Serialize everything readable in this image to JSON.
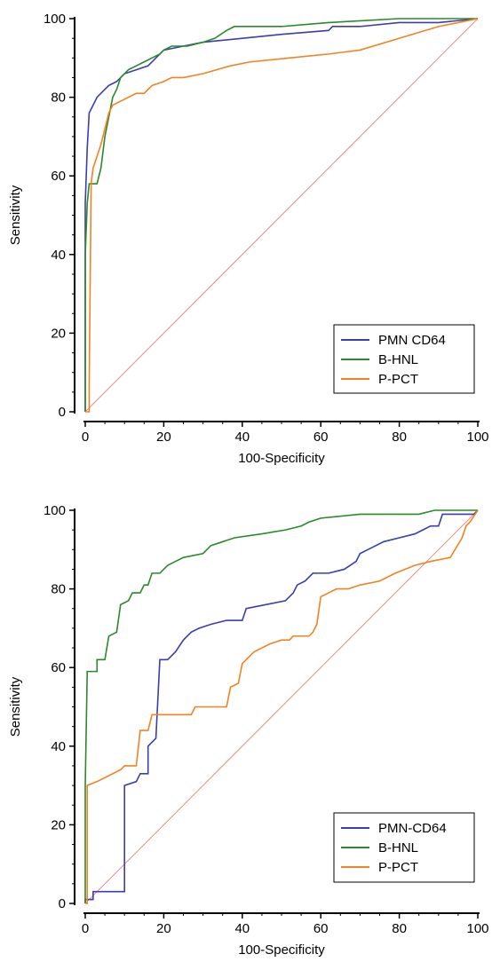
{
  "colors": {
    "pmn": "#3b3db0",
    "hnl": "#2a8a2a",
    "pct": "#f58220",
    "diagonal": "#e88a8a",
    "axis": "#000000"
  },
  "chart_data": [
    {
      "type": "line",
      "xlabel": "100-Specificity",
      "ylabel": "Sensitivity",
      "xlim": [
        0,
        100
      ],
      "ylim": [
        0,
        100
      ],
      "xticks": [
        "0",
        "20",
        "40",
        "60",
        "80",
        "100"
      ],
      "yticks": [
        "0",
        "20",
        "40",
        "60",
        "80",
        "100"
      ],
      "legend": "bottom-right",
      "reference_line": [
        [
          0,
          0
        ],
        [
          100,
          100
        ]
      ],
      "series": [
        {
          "name": "PMN CD64",
          "color": "pmn",
          "points": [
            [
              0,
              0
            ],
            [
              0,
              53
            ],
            [
              0.5,
              67
            ],
            [
              1,
              76
            ],
            [
              2,
              78
            ],
            [
              3,
              80
            ],
            [
              5,
              82
            ],
            [
              6,
              83
            ],
            [
              8,
              84
            ],
            [
              10,
              86
            ],
            [
              13,
              87
            ],
            [
              16,
              88
            ],
            [
              18,
              90
            ],
            [
              20,
              92
            ],
            [
              25,
              93
            ],
            [
              30,
              94
            ],
            [
              40,
              95
            ],
            [
              50,
              96
            ],
            [
              62,
              97
            ],
            [
              63,
              98
            ],
            [
              70,
              98
            ],
            [
              80,
              99
            ],
            [
              90,
              99
            ],
            [
              100,
              100
            ]
          ]
        },
        {
          "name": "B-HNL",
          "color": "hnl",
          "points": [
            [
              0,
              0
            ],
            [
              0,
              40
            ],
            [
              0.5,
              53
            ],
            [
              1,
              58
            ],
            [
              3,
              58
            ],
            [
              4,
              62
            ],
            [
              5,
              70
            ],
            [
              6,
              75
            ],
            [
              7,
              80
            ],
            [
              8,
              82
            ],
            [
              9,
              85
            ],
            [
              10,
              86
            ],
            [
              11,
              87
            ],
            [
              13,
              88
            ],
            [
              15,
              89
            ],
            [
              17,
              90
            ],
            [
              19,
              91
            ],
            [
              20,
              92
            ],
            [
              22,
              93
            ],
            [
              26,
              93
            ],
            [
              30,
              94
            ],
            [
              33,
              95
            ],
            [
              36,
              97
            ],
            [
              38,
              98
            ],
            [
              50,
              98
            ],
            [
              62,
              99
            ],
            [
              80,
              100
            ],
            [
              100,
              100
            ]
          ]
        },
        {
          "name": "P-PCT",
          "color": "pct",
          "points": [
            [
              0,
              0
            ],
            [
              1,
              0
            ],
            [
              1,
              7
            ],
            [
              1.5,
              58
            ],
            [
              2,
              62
            ],
            [
              3,
              65
            ],
            [
              4,
              68
            ],
            [
              5,
              72
            ],
            [
              6,
              76
            ],
            [
              7,
              78
            ],
            [
              9,
              79
            ],
            [
              11,
              80
            ],
            [
              13,
              81
            ],
            [
              15,
              81
            ],
            [
              17,
              83
            ],
            [
              20,
              84
            ],
            [
              22,
              85
            ],
            [
              25,
              85
            ],
            [
              30,
              86
            ],
            [
              37,
              88
            ],
            [
              42,
              89
            ],
            [
              52,
              90
            ],
            [
              62,
              91
            ],
            [
              70,
              92
            ],
            [
              80,
              95
            ],
            [
              90,
              98
            ],
            [
              95,
              99
            ],
            [
              100,
              100
            ]
          ]
        }
      ]
    },
    {
      "type": "line",
      "xlabel": "100-Specificity",
      "ylabel": "Sensitivity",
      "xlim": [
        0,
        100
      ],
      "ylim": [
        0,
        100
      ],
      "xticks": [
        "0",
        "20",
        "40",
        "60",
        "80",
        "100"
      ],
      "yticks": [
        "0",
        "20",
        "40",
        "60",
        "80",
        "100"
      ],
      "legend": "bottom-right",
      "reference_line": [
        [
          0,
          0
        ],
        [
          100,
          100
        ]
      ],
      "series": [
        {
          "name": "PMN-CD64",
          "color": "pmn",
          "points": [
            [
              0,
              0
            ],
            [
              0,
              1
            ],
            [
              2,
              1
            ],
            [
              2,
              3
            ],
            [
              10,
              3
            ],
            [
              10,
              30
            ],
            [
              13,
              31
            ],
            [
              14,
              33
            ],
            [
              16,
              33
            ],
            [
              16,
              40
            ],
            [
              18,
              42
            ],
            [
              19,
              62
            ],
            [
              21,
              62
            ],
            [
              23,
              64
            ],
            [
              25,
              67
            ],
            [
              27,
              69
            ],
            [
              29,
              70
            ],
            [
              32,
              71
            ],
            [
              36,
              72
            ],
            [
              40,
              72
            ],
            [
              41,
              75
            ],
            [
              46,
              76
            ],
            [
              51,
              77
            ],
            [
              53,
              79
            ],
            [
              54,
              81
            ],
            [
              56,
              82
            ],
            [
              58,
              84
            ],
            [
              62,
              84
            ],
            [
              66,
              85
            ],
            [
              69,
              87
            ],
            [
              70,
              89
            ],
            [
              72,
              90
            ],
            [
              76,
              92
            ],
            [
              80,
              93
            ],
            [
              84,
              94
            ],
            [
              86,
              95
            ],
            [
              88,
              96
            ],
            [
              90,
              96
            ],
            [
              91,
              99
            ],
            [
              95,
              99
            ],
            [
              99,
              99
            ],
            [
              100,
              100
            ]
          ]
        },
        {
          "name": "B-HNL",
          "color": "hnl",
          "points": [
            [
              0,
              0
            ],
            [
              0,
              30
            ],
            [
              0.5,
              59
            ],
            [
              3,
              59
            ],
            [
              3,
              62
            ],
            [
              5,
              62
            ],
            [
              6,
              68
            ],
            [
              8,
              69
            ],
            [
              9,
              76
            ],
            [
              11,
              77
            ],
            [
              12,
              79
            ],
            [
              14,
              79
            ],
            [
              15,
              81
            ],
            [
              16,
              81
            ],
            [
              17,
              84
            ],
            [
              19,
              84
            ],
            [
              21,
              86
            ],
            [
              23,
              87
            ],
            [
              25,
              88
            ],
            [
              30,
              89
            ],
            [
              32,
              91
            ],
            [
              35,
              92
            ],
            [
              38,
              93
            ],
            [
              45,
              94
            ],
            [
              51,
              95
            ],
            [
              55,
              96
            ],
            [
              57,
              97
            ],
            [
              60,
              98
            ],
            [
              70,
              99
            ],
            [
              85,
              99
            ],
            [
              89,
              100
            ],
            [
              100,
              100
            ]
          ]
        },
        {
          "name": "P-PCT",
          "color": "pct",
          "points": [
            [
              0,
              0
            ],
            [
              0.5,
              0
            ],
            [
              0.5,
              30
            ],
            [
              3,
              31
            ],
            [
              5,
              32
            ],
            [
              7,
              33
            ],
            [
              9,
              34
            ],
            [
              10,
              35
            ],
            [
              13,
              35
            ],
            [
              14,
              44
            ],
            [
              16,
              44
            ],
            [
              17,
              48
            ],
            [
              18,
              48
            ],
            [
              19,
              48
            ],
            [
              27,
              48
            ],
            [
              28,
              50
            ],
            [
              36,
              50
            ],
            [
              37,
              55
            ],
            [
              39,
              56
            ],
            [
              40,
              61
            ],
            [
              42,
              63
            ],
            [
              43,
              64
            ],
            [
              45,
              65
            ],
            [
              47,
              66
            ],
            [
              50,
              67
            ],
            [
              52,
              67
            ],
            [
              53,
              68
            ],
            [
              57,
              68
            ],
            [
              58,
              69
            ],
            [
              59,
              71
            ],
            [
              60,
              78
            ],
            [
              62,
              79
            ],
            [
              64,
              80
            ],
            [
              67,
              80
            ],
            [
              70,
              81
            ],
            [
              75,
              82
            ],
            [
              79,
              84
            ],
            [
              84,
              86
            ],
            [
              88,
              87
            ],
            [
              93,
              88
            ],
            [
              96,
              93
            ],
            [
              97,
              96
            ],
            [
              98,
              97
            ],
            [
              100,
              100
            ]
          ]
        }
      ]
    }
  ]
}
